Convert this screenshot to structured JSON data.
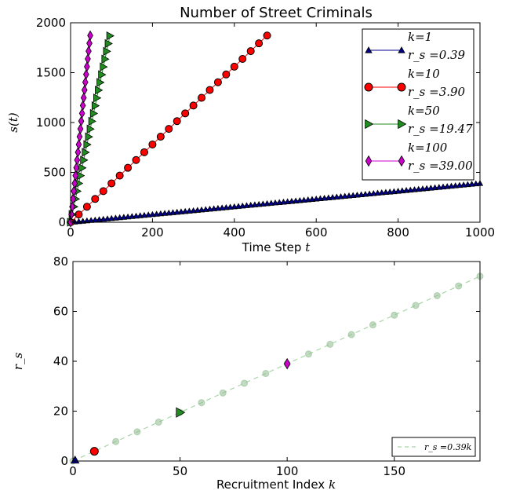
{
  "chart_data": [
    {
      "type": "line",
      "title": "Number of Street Criminals",
      "xlabel_text": "Time Step ",
      "xlabel_var": "t",
      "ylabel": "s(t)",
      "xlim": [
        0,
        1000
      ],
      "ylim": [
        0,
        2000
      ],
      "xticks": [
        0,
        200,
        400,
        600,
        800,
        1000
      ],
      "yticks": [
        0,
        500,
        1000,
        1500,
        2000
      ],
      "grid": false,
      "legend_position": "top-right",
      "series": [
        {
          "name": "k=1",
          "rs_label": "r_s =0.39",
          "rate": 0.39,
          "step": 10,
          "t_max": 1000,
          "color": "#00008b",
          "marker": "triangle-up"
        },
        {
          "name": "k=10",
          "rs_label": "r_s =3.90",
          "rate": 3.9,
          "step": 20,
          "t_max": 480,
          "color": "#ff0000",
          "marker": "circle"
        },
        {
          "name": "k=50",
          "rs_label": "r_s =19.47",
          "rate": 19.47,
          "step": 4,
          "t_max": 96,
          "color": "#228b22",
          "marker": "triangle-right"
        },
        {
          "name": "k=100",
          "rs_label": "r_s =39.00",
          "rate": 39.0,
          "step": 2,
          "t_max": 48,
          "color": "#cc00cc",
          "marker": "diamond"
        }
      ]
    },
    {
      "type": "scatter",
      "xlabel_text": "Recruitment Index ",
      "xlabel_var": "k",
      "ylabel": "r_s",
      "xlim": [
        0,
        190
      ],
      "ylim": [
        0,
        80
      ],
      "xticks": [
        0,
        50,
        100,
        150
      ],
      "yticks": [
        0,
        20,
        40,
        60,
        80
      ],
      "grid": false,
      "legend_position": "bottom-right",
      "fit_line": {
        "label": "r_s =0.39k",
        "slope": 0.39,
        "color": "#a8d5a8"
      },
      "points_color": "#8fbc8f",
      "points": [
        [
          0,
          0
        ],
        [
          10,
          3.9
        ],
        [
          20,
          7.8
        ],
        [
          30,
          11.7
        ],
        [
          40,
          15.6
        ],
        [
          50,
          19.5
        ],
        [
          60,
          23.4
        ],
        [
          70,
          27.3
        ],
        [
          80,
          31.2
        ],
        [
          90,
          35.1
        ],
        [
          100,
          39.0
        ],
        [
          110,
          42.9
        ],
        [
          120,
          46.8
        ],
        [
          130,
          50.7
        ],
        [
          140,
          54.6
        ],
        [
          150,
          58.5
        ],
        [
          160,
          62.4
        ],
        [
          170,
          66.3
        ],
        [
          180,
          70.2
        ],
        [
          190,
          74.1
        ]
      ],
      "highlights": [
        {
          "k": 1,
          "rs": 0.39,
          "color": "#00008b",
          "marker": "triangle-up"
        },
        {
          "k": 10,
          "rs": 3.9,
          "color": "#ff0000",
          "marker": "circle"
        },
        {
          "k": 50,
          "rs": 19.47,
          "color": "#228b22",
          "marker": "triangle-right"
        },
        {
          "k": 100,
          "rs": 39.0,
          "color": "#cc00cc",
          "marker": "diamond"
        }
      ]
    }
  ]
}
